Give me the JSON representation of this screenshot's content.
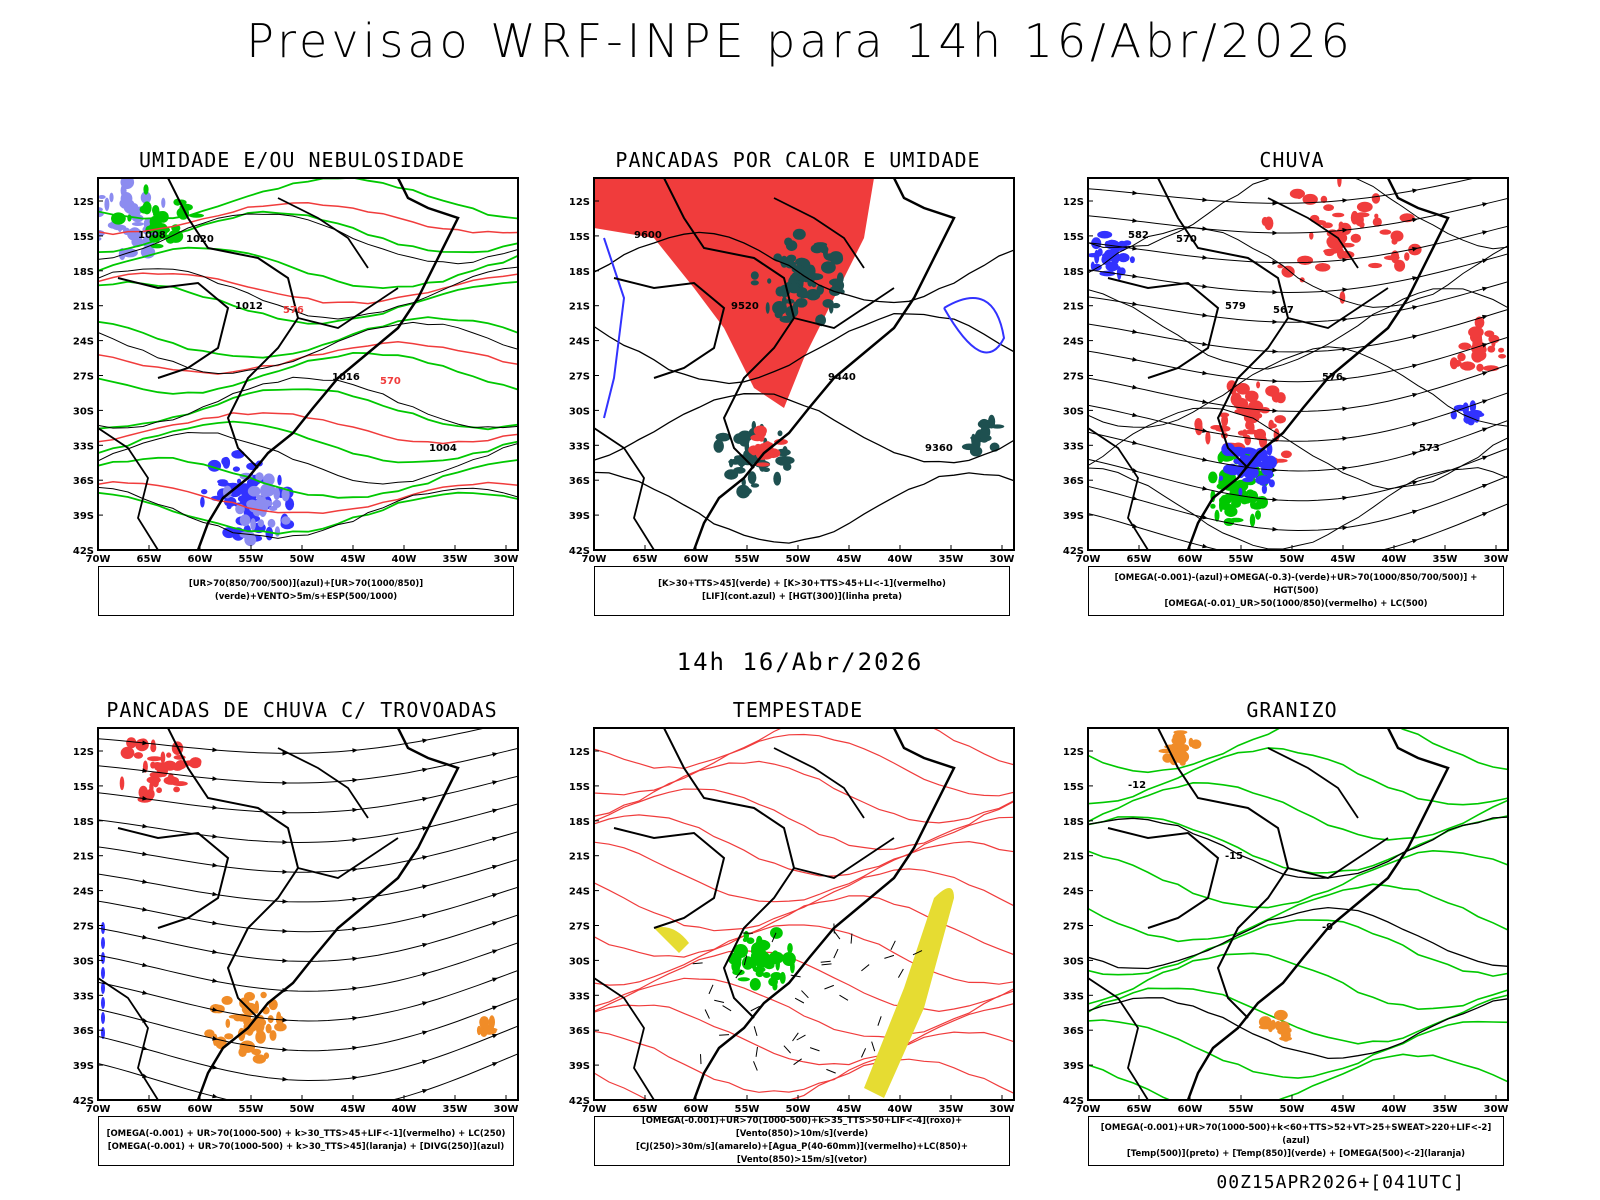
{
  "main_title": "Previsao WRF-INPE  para 14h 16/Abr/2026",
  "mid_title": "14h 16/Abr/2026",
  "footer": "00Z15APR2026+[041UTC]",
  "axis": {
    "lat_labels": [
      "12S",
      "15S",
      "18S",
      "21S",
      "24S",
      "27S",
      "30S",
      "33S",
      "36S",
      "39S",
      "42S"
    ],
    "lon_labels": [
      "70W",
      "65W",
      "60W",
      "55W",
      "50W",
      "45W",
      "40W",
      "35W",
      "30W"
    ]
  },
  "panels": [
    {
      "title": "UMIDADE E/OU NEBULOSIDADE",
      "legend": [
        "[UR>70(850/700/500)](azul)+[UR>70(1000/850)](verde)+VENTO>5m/s+ESP(500/1000)"
      ],
      "labels": [
        "1008",
        "1012",
        "1016",
        "1004",
        "1020",
        "576",
        "570"
      ]
    },
    {
      "title": "PANCADAS POR CALOR E UMIDADE",
      "legend": [
        "[K>30+TTS>45](verde) + [K>30+TTS>45+LI<-1](vermelho)",
        "[LIF](cont.azul) + [HGT(300)](linha preta)"
      ],
      "labels": [
        "9600",
        "9520",
        "9440",
        "9360"
      ]
    },
    {
      "title": "CHUVA",
      "legend": [
        "[OMEGA(-0.001)-(azul)+OMEGA(-0.3)-(verde)+UR>70(1000/850/700/500)] + HGT(500)",
        "[OMEGA(-0.01)_UR>50(1000/850)(vermelho) + LC(500)"
      ],
      "labels": [
        "582",
        "579",
        "576",
        "573",
        "570",
        "567"
      ]
    },
    {
      "title": "PANCADAS DE CHUVA C/ TROVOADAS",
      "legend": [
        "[OMEGA(-0.001) + UR>70(1000-500) + k>30_TTS>45+LIF<-1](vermelho) + LC(250)",
        "[OMEGA(-0.001) + UR>70(1000-500) + k>30_TTS>45](laranja) + [DIVG(250)](azul)"
      ],
      "labels": []
    },
    {
      "title": "TEMPESTADE",
      "legend": [
        "[OMEGA(-0.001)+UR>70(1000-500)+k>35_TTS>50+LIF<-4](roxo)+[Vento(850)>10m/s](verde)",
        "[CJ(250)>30m/s](amarelo)+[Agua_P(40-60mm)](vermelho)+LC(850)+[Vento(850)>15m/s](vetor)"
      ],
      "labels": []
    },
    {
      "title": "GRANIZO",
      "legend": [
        "[OMEGA(-0.001)+UR>70(1000-500)+k<60+TTS>52+VT>25+SWEAT>220+LIF<-2](azul)",
        "[Temp(500)](preto) + [Temp(850)](verde) + [OMEGA(500)<-2](laranja)"
      ],
      "labels": [
        "-12",
        "-15",
        "-9"
      ]
    }
  ],
  "colors": {
    "red": "#f03c3c",
    "green": "#00c800",
    "blue": "#3232ff",
    "lightblue": "#8c8cf0",
    "darkteal": "#1e5050",
    "orange": "#f08c28",
    "yellow": "#e6dc32",
    "black": "#000000"
  }
}
